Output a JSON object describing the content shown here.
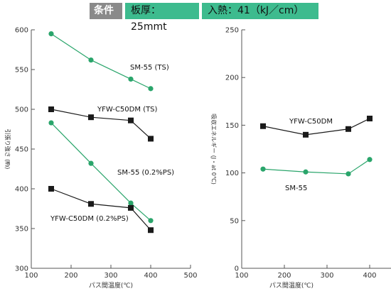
{
  "header": {
    "label": "条件",
    "thickness": "板厚：25mmt",
    "heat_input": "入熱：41（kJ／cm）"
  },
  "colors": {
    "green": "#2aa56b",
    "black": "#1a1a1a",
    "header_gray": "#8a8a8a",
    "header_green": "#3dbb8e"
  },
  "chart_data": [
    {
      "type": "line",
      "xlabel": "パス間温度(℃)",
      "ylabel": "引張り強さ (㎫)",
      "xlim": [
        100,
        500
      ],
      "ylim": [
        300,
        600
      ],
      "xticks": [
        100,
        200,
        300,
        400,
        500
      ],
      "yticks": [
        300,
        350,
        400,
        450,
        500,
        550,
        600
      ],
      "series": [
        {
          "name": "SM-55 (TS)",
          "color": "green",
          "marker": "circle",
          "x": [
            150,
            250,
            350,
            400
          ],
          "y": [
            595,
            562,
            538,
            526
          ]
        },
        {
          "name": "YFW-C50DM (TS)",
          "color": "black",
          "marker": "square",
          "x": [
            150,
            250,
            350,
            400
          ],
          "y": [
            500,
            490,
            486,
            463
          ]
        },
        {
          "name": "SM-55 (0.2%PS)",
          "color": "green",
          "marker": "circle",
          "x": [
            150,
            250,
            350,
            400
          ],
          "y": [
            483,
            432,
            382,
            360
          ]
        },
        {
          "name": "YFW-C50DM (0.2%PS)",
          "color": "black",
          "marker": "square",
          "x": [
            150,
            250,
            350,
            400
          ],
          "y": [
            400,
            381,
            376,
            348
          ]
        }
      ]
    },
    {
      "type": "line",
      "xlabel": "パス間温度(℃)",
      "ylabel": "吸収エネルギー (J・at 0℃)",
      "xlim": [
        100,
        450
      ],
      "ylim": [
        0,
        250
      ],
      "xticks": [
        100,
        200,
        300,
        400
      ],
      "yticks": [
        0,
        50,
        100,
        150,
        200,
        250
      ],
      "series": [
        {
          "name": "YFW-C50DM",
          "color": "black",
          "marker": "square",
          "x": [
            150,
            250,
            350,
            400
          ],
          "y": [
            149,
            140,
            146,
            157
          ]
        },
        {
          "name": "SM-55",
          "color": "green",
          "marker": "circle",
          "x": [
            150,
            250,
            350,
            400
          ],
          "y": [
            104,
            101,
            99,
            114
          ]
        }
      ]
    }
  ]
}
